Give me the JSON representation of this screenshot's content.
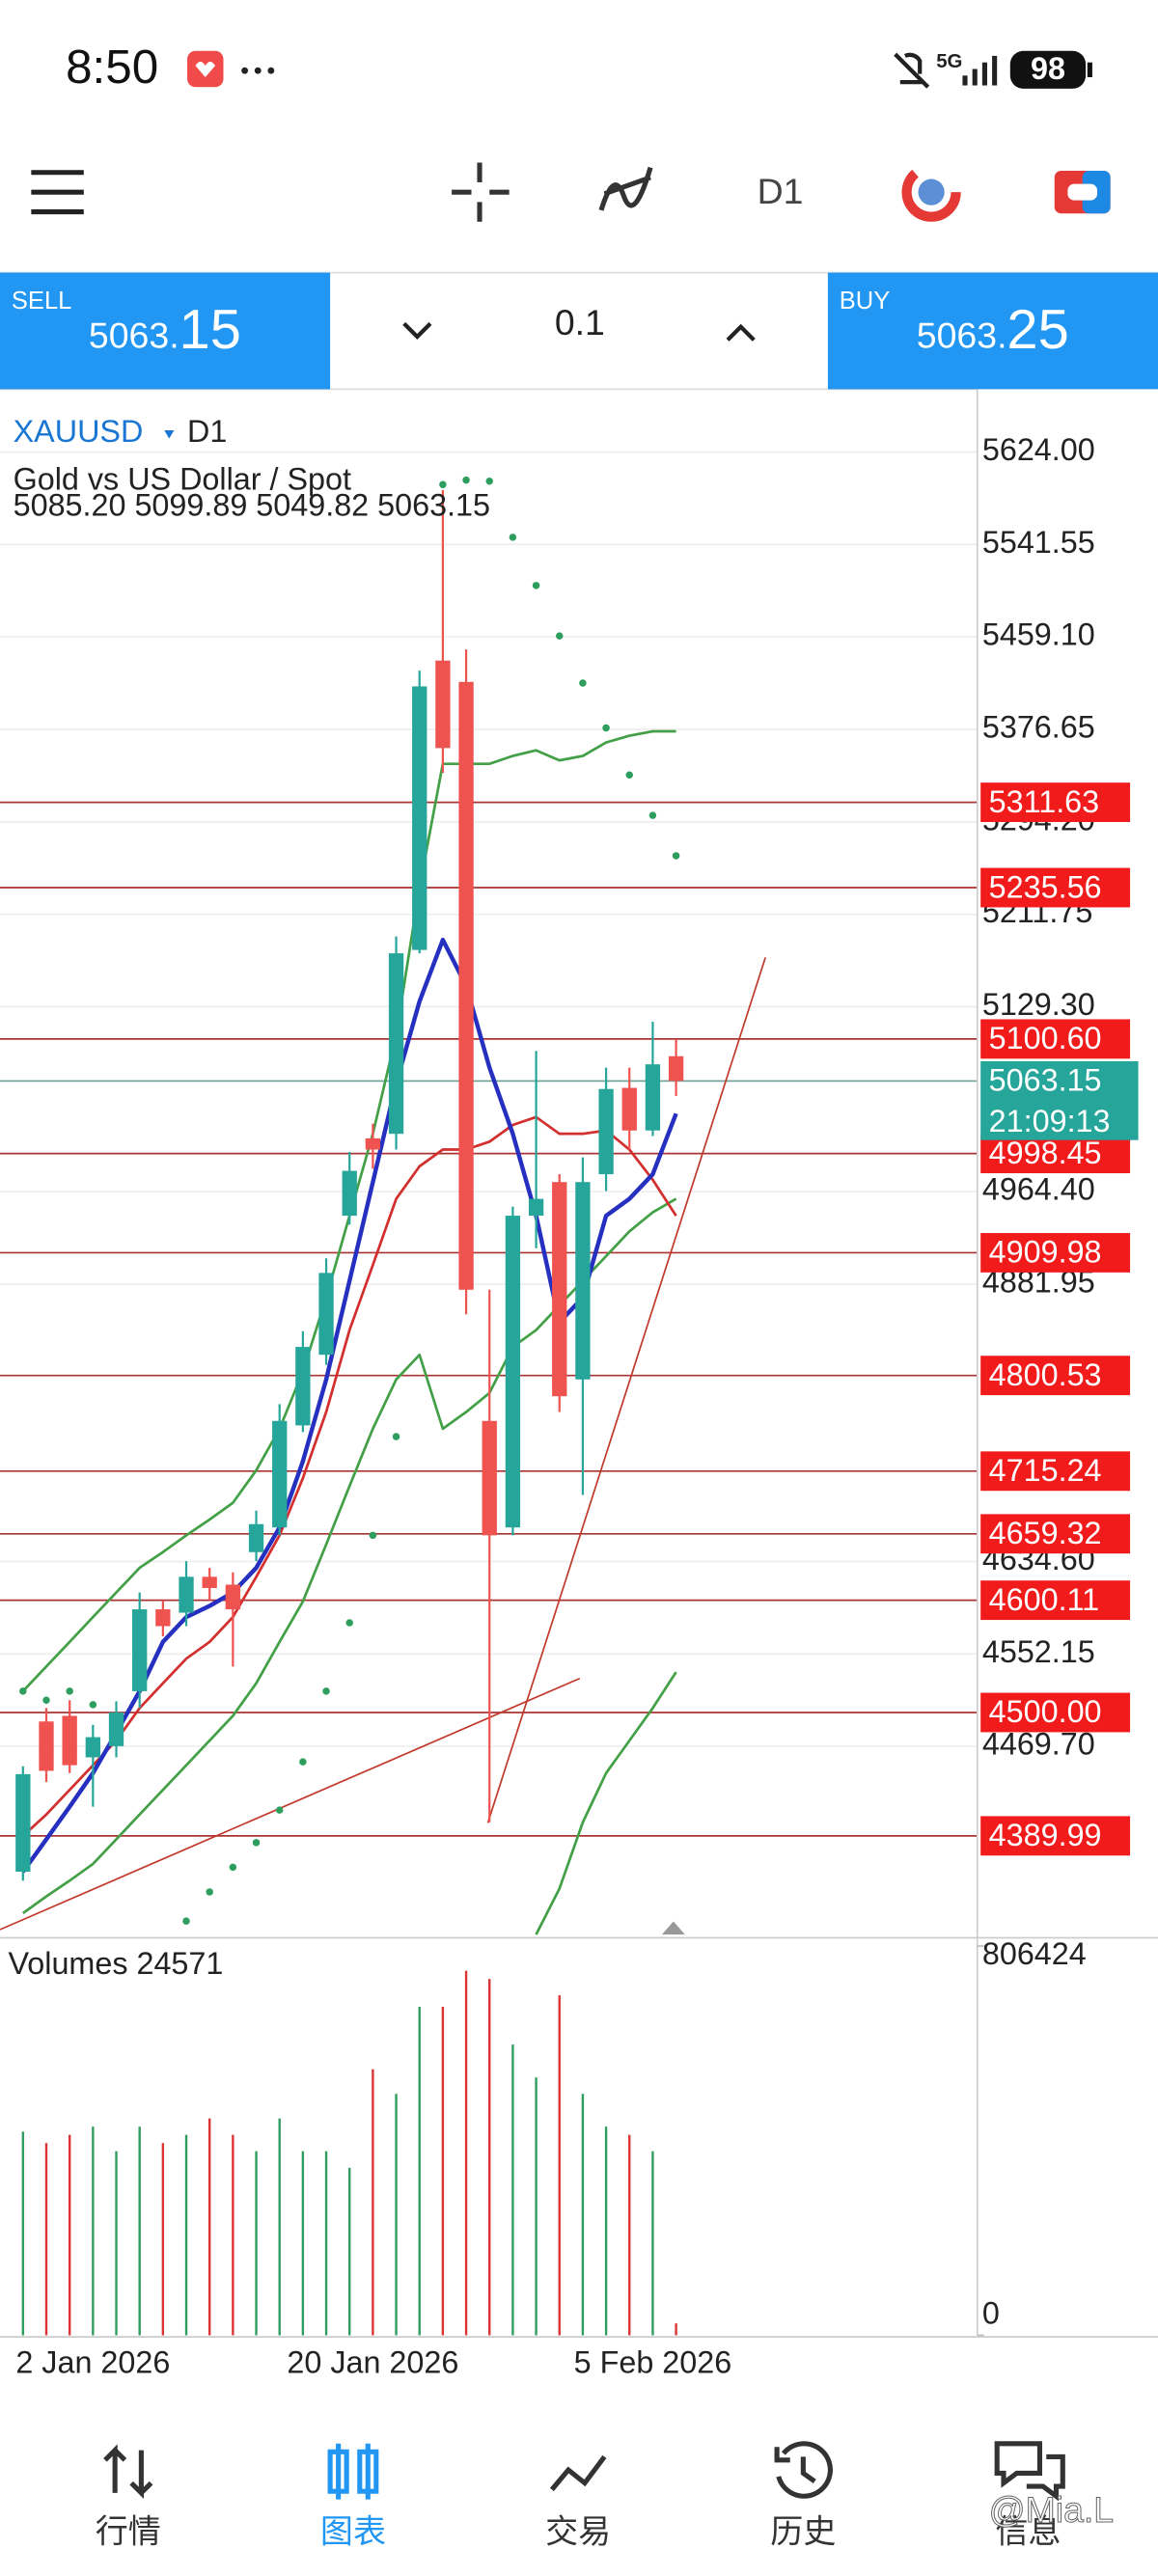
{
  "status_bar": {
    "time": "8:50",
    "battery": "98"
  },
  "toolbar": {
    "timeframe": "D1"
  },
  "trade_panel": {
    "sell_label": "SELL",
    "sell_price_main": "5063.",
    "sell_price_tail": "15",
    "volume": "0.1",
    "buy_label": "BUY",
    "buy_price_main": "5063.",
    "buy_price_tail": "25"
  },
  "chart_data": {
    "type": "candlestick",
    "symbol": "XAUUSD",
    "timeframe": "D1",
    "description": "Gold vs US Dollar / Spot",
    "ohlc_label": "5085.20 5099.89 5049.82 5063.15",
    "categories": [
      null,
      null,
      null,
      "2 Jan 2026",
      null,
      null,
      null,
      null,
      null,
      null,
      null,
      null,
      null,
      null,
      null,
      "20 Jan 2026",
      null,
      null,
      null,
      null,
      null,
      null,
      null,
      null,
      null,
      null,
      null,
      "5 Feb 2026",
      null
    ],
    "open": [
      4358,
      4492,
      4497,
      4460,
      4470,
      4519,
      4592,
      4589,
      4621,
      4614,
      4643,
      4665,
      4756,
      4819,
      4943,
      5012,
      5016,
      5180,
      5438,
      5419,
      4760,
      4665,
      4943,
      4973,
      4797,
      4980,
      5057,
      5019,
      5085.2
    ],
    "high": [
      4452,
      4504,
      4511,
      4489,
      4510,
      4607,
      4600,
      4635,
      4629,
      4625,
      4680,
      4775,
      4840,
      4905,
      5000,
      5025,
      5192,
      5429,
      5590,
      5448,
      4877,
      4951,
      5090,
      4980,
      4995,
      5075,
      5075,
      5116,
      5099.89
    ],
    "low": [
      4350,
      4438,
      4446,
      4416,
      4460,
      4504,
      4568,
      4577,
      4600,
      4541,
      4635,
      4658,
      4750,
      4810,
      4935,
      4985,
      5002,
      5177,
      5338,
      4855,
      4402,
      4658,
      4914,
      4768,
      4694,
      4965,
      5002,
      5014,
      5049.82
    ],
    "close": [
      4445,
      4448,
      4453,
      4478,
      4500,
      4592,
      4577,
      4621,
      4611,
      4592,
      4668,
      4760,
      4826,
      4892,
      4983,
      5002,
      5177,
      5415,
      5360,
      4877,
      4658,
      4943,
      4958,
      4782,
      4973,
      5056,
      5019,
      5078,
      5063.15
    ],
    "up_color": "#26a69a",
    "down_color": "#ef5350",
    "ylim": [
      4302,
      5680
    ],
    "yticks": [
      {
        "value": 5624,
        "label": "5624.00"
      },
      {
        "value": 5541.55,
        "label": "5541.55"
      },
      {
        "value": 5459.1,
        "label": "5459.10"
      },
      {
        "value": 5376.65,
        "label": "5376.65"
      },
      {
        "value": 5294.2,
        "label": "5294.20"
      },
      {
        "value": 5211.75,
        "label": "5211.75"
      },
      {
        "value": 5129.3,
        "label": "5129.30"
      },
      {
        "value": 4964.4,
        "label": "4964.40"
      },
      {
        "value": 4881.95,
        "label": "4881.95"
      },
      {
        "value": 4634.6,
        "label": "4634.60"
      },
      {
        "value": 4552.15,
        "label": "4552.15"
      },
      {
        "value": 4469.7,
        "label": "4469.70"
      }
    ],
    "grid": true,
    "levels": [
      {
        "value": 5311.63,
        "label": "5311.63"
      },
      {
        "value": 5235.56,
        "label": "5235.56"
      },
      {
        "value": 5100.6,
        "label": "5100.60"
      },
      {
        "value": 4998.45,
        "label": "4998.45"
      },
      {
        "value": 4909.98,
        "label": "4909.98"
      },
      {
        "value": 4800.53,
        "label": "4800.53"
      },
      {
        "value": 4715.24,
        "label": "4715.24"
      },
      {
        "value": 4659.32,
        "label": "4659.32"
      },
      {
        "value": 4600.11,
        "label": "4600.11"
      },
      {
        "value": 4500,
        "label": "4500.00"
      },
      {
        "value": 4389.99,
        "label": "4389.99"
      }
    ],
    "level_color": "#f21b1b",
    "current_price": {
      "value": 5063.15,
      "label": "5063.15"
    },
    "countdown": "21:09:13",
    "indicators": [
      {
        "color": "#43a047",
        "values": [
          4519,
          4541,
          4563,
          4585,
          4607,
          4629,
          4643,
          4658,
          4672,
          4687,
          4716,
          4753,
          4804,
          4870,
          4943,
          5016,
          5104,
          5236,
          5346,
          5346,
          5346,
          5353,
          5358,
          5349,
          5353,
          5365,
          5371,
          5375,
          5375
        ]
      },
      {
        "color": "#43a047",
        "values": [
          4321,
          4336,
          4350,
          4365,
          4387,
          4409,
          4431,
          4453,
          4475,
          4497,
          4526,
          4563,
          4599,
          4650,
          4702,
          4753,
          4797,
          4819,
          4753,
          4768,
          4785,
          4826,
          4841,
          4863,
          4885,
          4907,
          4929,
          4946,
          4958
        ]
      },
      {
        "color": "#43a047",
        "values": [
          null,
          null,
          null,
          null,
          null,
          null,
          null,
          null,
          null,
          null,
          null,
          null,
          null,
          null,
          null,
          null,
          null,
          null,
          null,
          null,
          null,
          null,
          4302,
          4343,
          4402,
          4446,
          4475,
          4504,
          4536
        ]
      },
      {
        "color": "#d32f2f",
        "values": [
          4390,
          4409,
          4431,
          4453,
          4475,
          4504,
          4526,
          4548,
          4563,
          4585,
          4621,
          4658,
          4709,
          4768,
          4841,
          4899,
          4958,
          4987,
          5002,
          5002,
          5009,
          5024,
          5031,
          5016,
          5016,
          5019,
          5002,
          4975,
          4943
        ]
      },
      {
        "color": "#2630c0",
        "values": [
          4358,
          4387,
          4416,
          4446,
          4482,
          4519,
          4563,
          4585,
          4595,
          4607,
          4629,
          4665,
          4724,
          4797,
          4885,
          4973,
          5061,
          5134,
          5189,
          5148,
          5075,
          5016,
          4943,
          4848,
          4870,
          4943,
          4958,
          4980,
          5034
        ]
      }
    ],
    "sar": {
      "color": "#2e9e5e",
      "values": [
        4519,
        4511,
        4519,
        4507,
        null,
        null,
        null,
        4314,
        4340,
        4362,
        4384,
        4413,
        4456,
        4519,
        4580,
        4658,
        4746,
        null,
        5595,
        5599,
        5598,
        5548,
        5505,
        5460,
        5418,
        5378,
        5336,
        5300,
        5264
      ]
    },
    "volume": {
      "label": "Volumes 24571",
      "values": [
        421900,
        398100,
        415100,
        432100,
        381100,
        432100,
        398100,
        415100,
        449100,
        415100,
        381100,
        449100,
        381100,
        381100,
        347100,
        551200,
        500200,
        680500,
        680500,
        755400,
        738400,
        602300,
        534200,
        704300,
        500200,
        432100,
        415100,
        381100,
        24571
      ],
      "ylim": [
        0,
        806424
      ],
      "yticks": [
        806424,
        0
      ]
    }
  },
  "tab_bar": {
    "tabs": [
      "行情",
      "图表",
      "交易",
      "历史",
      "信息"
    ],
    "active": 1
  },
  "watermark": "@Mia.L"
}
